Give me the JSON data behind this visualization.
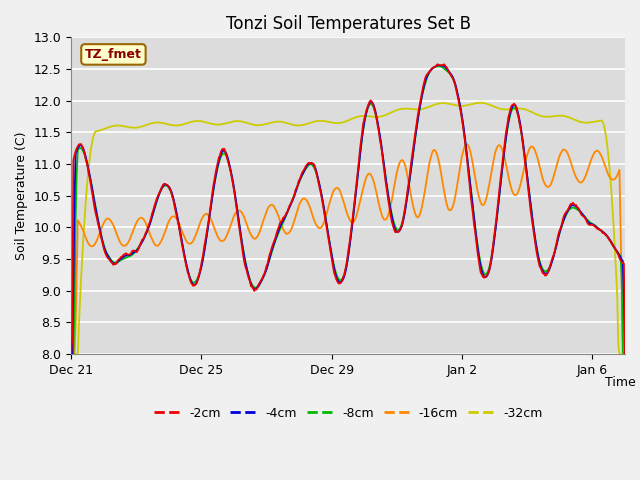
{
  "title": "Tonzi Soil Temperatures Set B",
  "xlabel": "Time",
  "ylabel": "Soil Temperature (C)",
  "ylim": [
    8.0,
    13.0
  ],
  "yticks": [
    8.0,
    8.5,
    9.0,
    9.5,
    10.0,
    10.5,
    11.0,
    11.5,
    12.0,
    12.5,
    13.0
  ],
  "bg_color": "#dcdcdc",
  "fig_bg_color": "#f0f0f0",
  "series_colors": {
    "-2cm": "#ee0000",
    "-4cm": "#0000dd",
    "-8cm": "#00bb00",
    "-16cm": "#ff8800",
    "-32cm": "#cccc00"
  },
  "annotation_text": "TZ_fmet",
  "annotation_bg": "#ffffcc",
  "annotation_border": "#996600",
  "tick_positions": [
    0,
    4,
    8,
    12,
    16
  ],
  "tick_labels": [
    "Dec 21",
    "Dec 25",
    "Dec 29",
    "Jan 2",
    "Jan 6"
  ],
  "xlim": [
    0,
    17
  ]
}
